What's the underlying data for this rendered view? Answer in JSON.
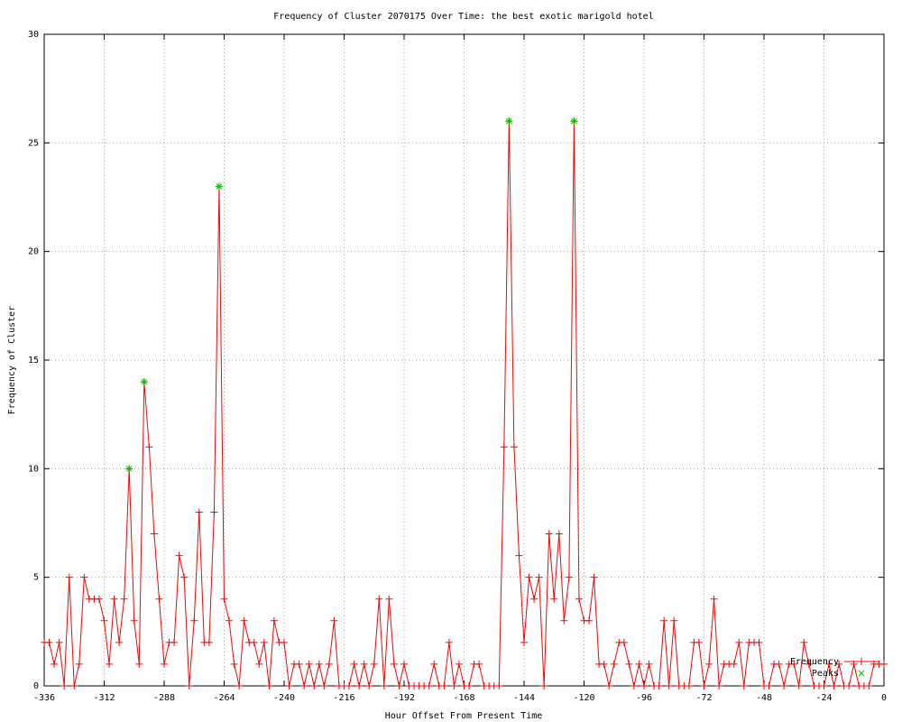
{
  "chart_data": {
    "type": "line",
    "title": "Frequency of Cluster 2070175 Over Time: the best exotic marigold hotel",
    "xlabel": "Hour Offset From Present Time",
    "ylabel": "Frequency of Cluster",
    "xlim": [
      -336,
      0
    ],
    "xticks": [
      -336,
      -312,
      -288,
      -264,
      -240,
      -216,
      -192,
      -168,
      -144,
      -120,
      -96,
      -72,
      -48,
      -24,
      0
    ],
    "ylim": [
      0,
      30
    ],
    "yticks": [
      0,
      5,
      10,
      15,
      20,
      25,
      30
    ],
    "grid": true,
    "legend": "bottom-right",
    "series": [
      {
        "name": "Frequency",
        "color": "#ff0000",
        "x": [
          -336,
          -334,
          -332,
          -330,
          -328,
          -326,
          -324,
          -322,
          -320,
          -318,
          -316,
          -314,
          -312,
          -310,
          -308,
          -306,
          -304,
          -302,
          -300,
          -298,
          -296,
          -294,
          -292,
          -290,
          -288,
          -286,
          -284,
          -282,
          -280,
          -278,
          -276,
          -274,
          -272,
          -270,
          -268,
          -266,
          -264,
          -262,
          -260,
          -258,
          -256,
          -254,
          -252,
          -250,
          -248,
          -246,
          -244,
          -242,
          -240,
          -238,
          -236,
          -234,
          -232,
          -230,
          -228,
          -226,
          -224,
          -222,
          -220,
          -218,
          -216,
          -214,
          -212,
          -210,
          -208,
          -206,
          -204,
          -202,
          -200,
          -198,
          -196,
          -194,
          -192,
          -190,
          -188,
          -186,
          -184,
          -182,
          -180,
          -178,
          -176,
          -174,
          -172,
          -170,
          -168,
          -166,
          -164,
          -162,
          -160,
          -158,
          -156,
          -154,
          -152,
          -150,
          -148,
          -146,
          -144,
          -142,
          -140,
          -138,
          -136,
          -134,
          -132,
          -130,
          -128,
          -126,
          -124,
          -122,
          -120,
          -118,
          -116,
          -114,
          -112,
          -110,
          -108,
          -106,
          -104,
          -102,
          -100,
          -98,
          -96,
          -94,
          -92,
          -90,
          -88,
          -86,
          -84,
          -82,
          -80,
          -78,
          -76,
          -74,
          -72,
          -70,
          -68,
          -66,
          -64,
          -62,
          -60,
          -58,
          -56,
          -54,
          -52,
          -50,
          -48,
          -46,
          -44,
          -42,
          -40,
          -38,
          -36,
          -34,
          -32,
          -30,
          -28,
          -26,
          -24,
          -22,
          -20,
          -18,
          -16,
          -14,
          -12,
          -10,
          -8,
          -6,
          -4,
          -2,
          0
        ],
        "values": [
          2,
          2,
          1,
          2,
          0,
          5,
          0,
          1,
          5,
          4,
          4,
          4,
          3,
          1,
          4,
          2,
          4,
          10,
          3,
          1,
          14,
          11,
          7,
          4,
          1,
          2,
          2,
          6,
          5,
          0,
          3,
          8,
          2,
          2,
          8,
          23,
          4,
          3,
          1,
          0,
          3,
          2,
          2,
          1,
          2,
          0,
          3,
          2,
          2,
          0,
          1,
          1,
          0,
          1,
          0,
          1,
          0,
          1,
          3,
          0,
          0,
          0,
          1,
          0,
          1,
          0,
          1,
          4,
          0,
          4,
          1,
          0,
          1,
          0,
          0,
          0,
          0,
          0,
          1,
          0,
          0,
          2,
          0,
          1,
          0,
          0,
          1,
          1,
          0,
          0,
          0,
          0,
          11,
          26,
          11,
          6,
          2,
          5,
          4,
          5,
          0,
          7,
          4,
          7,
          3,
          5,
          26,
          4,
          3,
          3,
          5,
          1,
          1,
          0,
          1,
          2,
          2,
          1,
          0,
          1,
          0,
          1,
          0,
          0,
          3,
          0,
          3,
          0,
          0,
          0,
          2,
          2,
          0,
          1,
          4,
          0,
          1,
          1,
          1,
          2,
          0,
          2,
          2,
          2,
          0,
          0,
          1,
          1,
          0,
          1,
          1,
          0,
          2,
          1,
          0,
          0,
          0,
          1,
          0,
          1,
          0,
          0,
          1,
          0,
          0,
          0,
          1,
          1,
          1
        ]
      },
      {
        "name": "Peaks",
        "color": "#00c000",
        "x": [
          -302,
          -296,
          -266,
          -150,
          -124
        ],
        "values": [
          10,
          14,
          23,
          26,
          26
        ]
      }
    ]
  }
}
